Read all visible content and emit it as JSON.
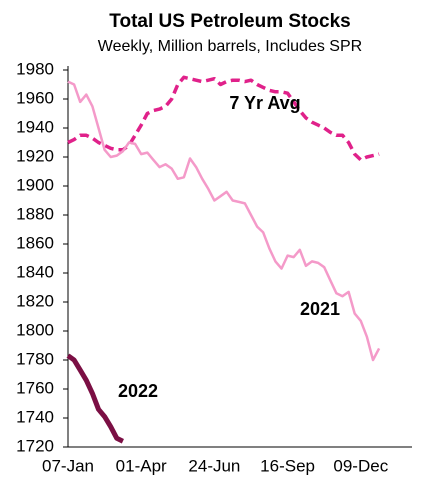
{
  "chart_data": {
    "type": "line",
    "title": "Total US Petroleum Stocks",
    "subtitle": "Weekly, Million barrels, Includes SPR",
    "categories": [
      "07-Jan",
      null,
      null,
      null,
      null,
      null,
      null,
      null,
      null,
      null,
      null,
      null,
      "01-Apr",
      null,
      null,
      null,
      null,
      null,
      null,
      null,
      null,
      null,
      null,
      null,
      "24-Jun",
      null,
      null,
      null,
      null,
      null,
      null,
      null,
      null,
      null,
      null,
      null,
      "16-Sep",
      null,
      null,
      null,
      null,
      null,
      null,
      null,
      null,
      null,
      null,
      null,
      "09-Dec",
      null,
      null,
      null
    ],
    "series": [
      {
        "name": "7 Yr Avg",
        "color": "#e0218a",
        "dash": true,
        "values": [
          1930,
          1932,
          1935,
          1935,
          1933,
          1930,
          1928,
          1926,
          1925,
          1925,
          1928,
          1935,
          1942,
          1950,
          1952,
          1953,
          1955,
          1960,
          1970,
          1975,
          1974,
          1973,
          1972,
          1973,
          1974,
          1970,
          1972,
          1973,
          1973,
          1972,
          1973,
          1970,
          1968,
          1966,
          1965,
          1965,
          1964,
          1958,
          1952,
          1947,
          1944,
          1942,
          1940,
          1937,
          1935,
          1935,
          1930,
          1922,
          1918,
          1920,
          1921,
          1922
        ]
      },
      {
        "name": "2021",
        "color": "#f49ac9",
        "dash": false,
        "values": [
          1972,
          1970,
          1958,
          1963,
          1955,
          1940,
          1925,
          1920,
          1921,
          1924,
          1930,
          1929,
          1922,
          1923,
          1918,
          1913,
          1915,
          1912,
          1905,
          1906,
          1919,
          1913,
          1905,
          1898,
          1890,
          1893,
          1896,
          1890,
          1889,
          1888,
          1880,
          1872,
          1868,
          1857,
          1848,
          1843,
          1852,
          1851,
          1856,
          1845,
          1848,
          1847,
          1844,
          1835,
          1826,
          1824,
          1827,
          1812,
          1807,
          1796,
          1780,
          1788
        ]
      },
      {
        "name": "2022",
        "color": "#7b0f44",
        "dash": false,
        "values": [
          1783,
          1780,
          1773,
          1766,
          1757,
          1746,
          1741,
          1734,
          1726,
          1724,
          null,
          null,
          null,
          null,
          null,
          null,
          null,
          null,
          null,
          null,
          null,
          null,
          null,
          null,
          null,
          null,
          null,
          null,
          null,
          null,
          null,
          null,
          null,
          null,
          null,
          null,
          null,
          null,
          null,
          null,
          null,
          null,
          null,
          null,
          null,
          null,
          null,
          null,
          null,
          null,
          null,
          null
        ]
      }
    ],
    "ylim": [
      1720,
      1980
    ],
    "yticks": [
      1720,
      1740,
      1760,
      1780,
      1800,
      1820,
      1840,
      1860,
      1880,
      1900,
      1920,
      1940,
      1960,
      1980
    ]
  }
}
